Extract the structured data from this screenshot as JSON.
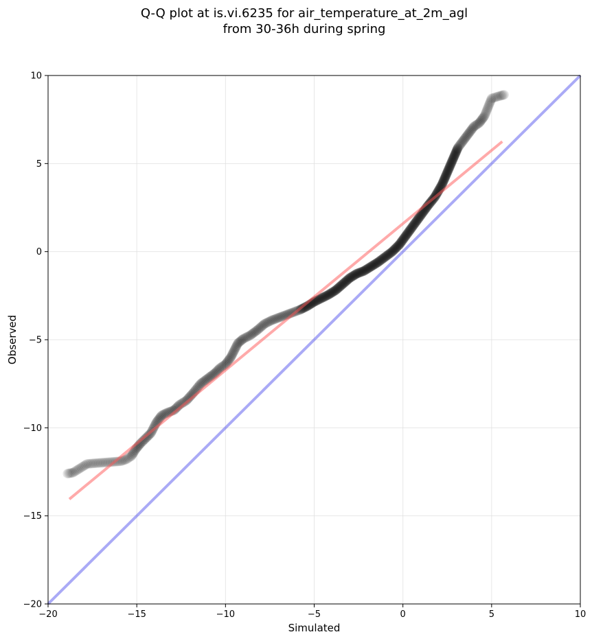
{
  "chart_data": {
    "type": "scatter",
    "title_lines": [
      "Q-Q plot at is.vi.6235 for air_temperature_at_2m_agl",
      "from 30-36h during spring"
    ],
    "xlabel": "Simulated",
    "ylabel": "Observed",
    "xlim": [
      -20,
      10
    ],
    "ylim": [
      -20,
      10
    ],
    "xticks": [
      -20,
      -15,
      -10,
      -5,
      0,
      5,
      10
    ],
    "yticks": [
      -20,
      -15,
      -10,
      -5,
      0,
      5,
      10
    ],
    "tick_labels": {
      "x": [
        "−20",
        "−15",
        "−10",
        "−5",
        "0",
        "5",
        "10"
      ],
      "y": [
        "−20",
        "−15",
        "−10",
        "−5",
        "0",
        "5",
        "10"
      ]
    },
    "grid": true,
    "colors": {
      "points": "#000000",
      "fit_line": "#ff5555",
      "identity_line": "#5555ee"
    },
    "quantile_curve": [
      [
        -18.9,
        -12.6
      ],
      [
        -18.6,
        -12.55
      ],
      [
        -17.8,
        -12.05
      ],
      [
        -15.9,
        -11.9
      ],
      [
        -15.6,
        -11.8
      ],
      [
        -15.3,
        -11.6
      ],
      [
        -15.05,
        -11.2
      ],
      [
        -14.8,
        -10.9
      ],
      [
        -14.5,
        -10.6
      ],
      [
        -14.2,
        -10.3
      ],
      [
        -13.9,
        -9.7
      ],
      [
        -13.6,
        -9.3
      ],
      [
        -13.3,
        -9.15
      ],
      [
        -12.9,
        -9.0
      ],
      [
        -12.6,
        -8.7
      ],
      [
        -12.2,
        -8.45
      ],
      [
        -11.8,
        -8.0
      ],
      [
        -11.4,
        -7.5
      ],
      [
        -11.0,
        -7.2
      ],
      [
        -10.6,
        -6.9
      ],
      [
        -10.3,
        -6.6
      ],
      [
        -10.0,
        -6.4
      ],
      [
        -9.7,
        -6.0
      ],
      [
        -9.5,
        -5.6
      ],
      [
        -9.3,
        -5.2
      ],
      [
        -9.0,
        -4.95
      ],
      [
        -8.6,
        -4.75
      ],
      [
        -8.2,
        -4.45
      ],
      [
        -7.8,
        -4.1
      ],
      [
        -7.4,
        -3.9
      ],
      [
        -7.0,
        -3.75
      ],
      [
        -6.6,
        -3.6
      ],
      [
        -6.2,
        -3.45
      ],
      [
        -5.8,
        -3.3
      ],
      [
        -5.4,
        -3.1
      ],
      [
        -5.0,
        -2.85
      ],
      [
        -4.6,
        -2.65
      ],
      [
        -4.2,
        -2.45
      ],
      [
        -3.8,
        -2.2
      ],
      [
        -3.4,
        -1.85
      ],
      [
        -3.0,
        -1.5
      ],
      [
        -2.6,
        -1.25
      ],
      [
        -2.2,
        -1.1
      ],
      [
        -1.8,
        -0.85
      ],
      [
        -1.4,
        -0.6
      ],
      [
        -1.0,
        -0.3
      ],
      [
        -0.6,
        0.0
      ],
      [
        -0.2,
        0.4
      ],
      [
        0.2,
        0.95
      ],
      [
        0.6,
        1.5
      ],
      [
        1.0,
        2.05
      ],
      [
        1.4,
        2.6
      ],
      [
        1.8,
        3.1
      ],
      [
        2.2,
        3.8
      ],
      [
        2.5,
        4.5
      ],
      [
        2.8,
        5.2
      ],
      [
        3.1,
        5.9
      ],
      [
        3.4,
        6.3
      ],
      [
        3.7,
        6.7
      ],
      [
        4.0,
        7.1
      ],
      [
        4.3,
        7.3
      ],
      [
        4.6,
        7.7
      ],
      [
        4.8,
        8.2
      ],
      [
        5.0,
        8.7
      ],
      [
        5.5,
        8.85
      ],
      [
        5.7,
        8.9
      ]
    ],
    "fit_line": {
      "x": [
        -18.8,
        5.6
      ],
      "y": [
        -14.05,
        6.25
      ]
    },
    "identity_line": {
      "x": [
        -20,
        10
      ],
      "y": [
        -20,
        10
      ]
    }
  }
}
